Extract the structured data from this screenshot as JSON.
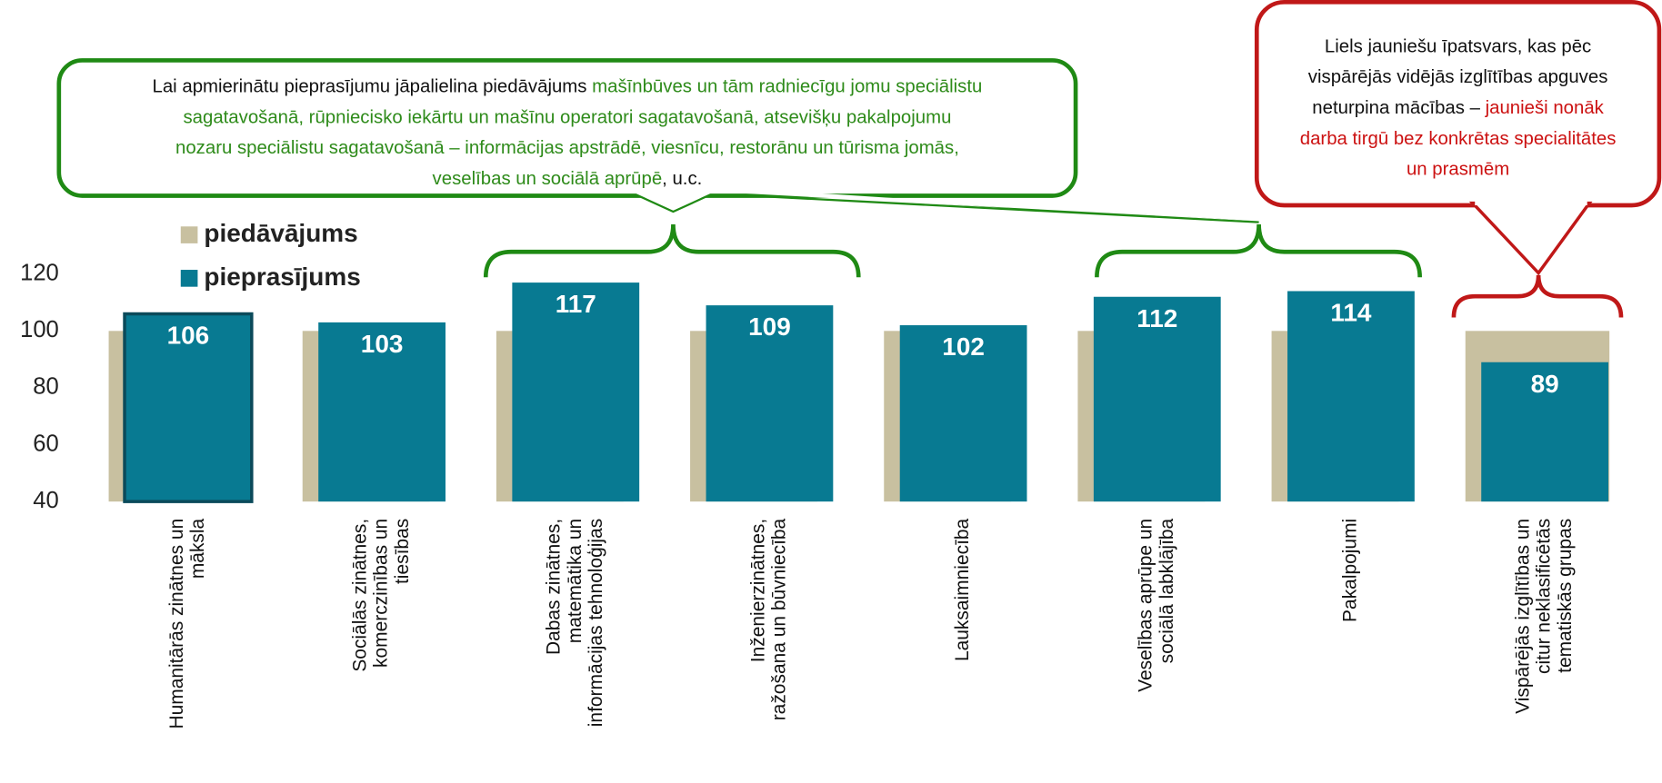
{
  "chart_data": {
    "type": "bar",
    "categories": [
      [
        "Humanitārās zinātnes un",
        "māksla"
      ],
      [
        "Sociālās zinātnes,",
        "komerczinības un",
        "tiesības"
      ],
      [
        "Dabas zinātnes,",
        "matemātika un",
        "informācijas tehnoloģijas"
      ],
      [
        "Inženierzinātnes,",
        "ražošana un būvniecība"
      ],
      [
        "Lauksaimniecība"
      ],
      [
        "Veselības aprūpe un",
        "sociālā labklājība"
      ],
      [
        "Pakalpojumi"
      ],
      [
        "Vispārējās izglītības un",
        "citur neklasificētās",
        "tematiskās grupas"
      ]
    ],
    "series": [
      {
        "name": "piedāvājums",
        "color": "#c8c0a0",
        "values": [
          100,
          100,
          100,
          100,
          100,
          100,
          100,
          100
        ]
      },
      {
        "name": "pieprasījums",
        "color": "#087a92",
        "values": [
          106,
          103,
          117,
          109,
          102,
          112,
          114,
          89
        ]
      }
    ],
    "ylim": [
      40,
      120
    ],
    "yticks": [
      40,
      60,
      80,
      100,
      120
    ],
    "annotations": [
      {
        "lines": [
          [
            {
              "text": "Lai apmierinātu pieprasījumu jāpalielina piedāvājums ",
              "color": "#111111"
            },
            {
              "text": "mašīnbūves un tām radniecīgu jomu speciālistu",
              "color": "#2e8b1a"
            }
          ],
          [
            {
              "text": "sagatavošanā, rūpniecisko iekārtu un mašīnu operatori sagatavošanā, atsevišķu pakalpojumu",
              "color": "#2e8b1a"
            }
          ],
          [
            {
              "text": "nozaru speciālistu sagatavošanā – informācijas apstrādē, viesnīcu, restorānu un tūrisma jomās,",
              "color": "#2e8b1a"
            }
          ],
          [
            {
              "text": "veselības un sociālā aprūpē",
              "color": "#2e8b1a"
            },
            {
              "text": ", u.c.",
              "color": "#111111"
            }
          ]
        ]
      },
      {
        "lines": [
          [
            {
              "text": "Liels jauniešu īpatsvars, kas pēc",
              "color": "#111111"
            }
          ],
          [
            {
              "text": "vispārējās vidējās izglītības apguves",
              "color": "#111111"
            }
          ],
          [
            {
              "text": "neturpina mācības – ",
              "color": "#111111"
            },
            {
              "text": "jaunieši nonāk",
              "color": "#cc1111"
            }
          ],
          [
            {
              "text": "darba tirgū bez konkrētas specialitātes",
              "color": "#cc1111"
            }
          ],
          [
            {
              "text": "un prasmēm",
              "color": "#cc1111"
            }
          ]
        ]
      }
    ]
  }
}
